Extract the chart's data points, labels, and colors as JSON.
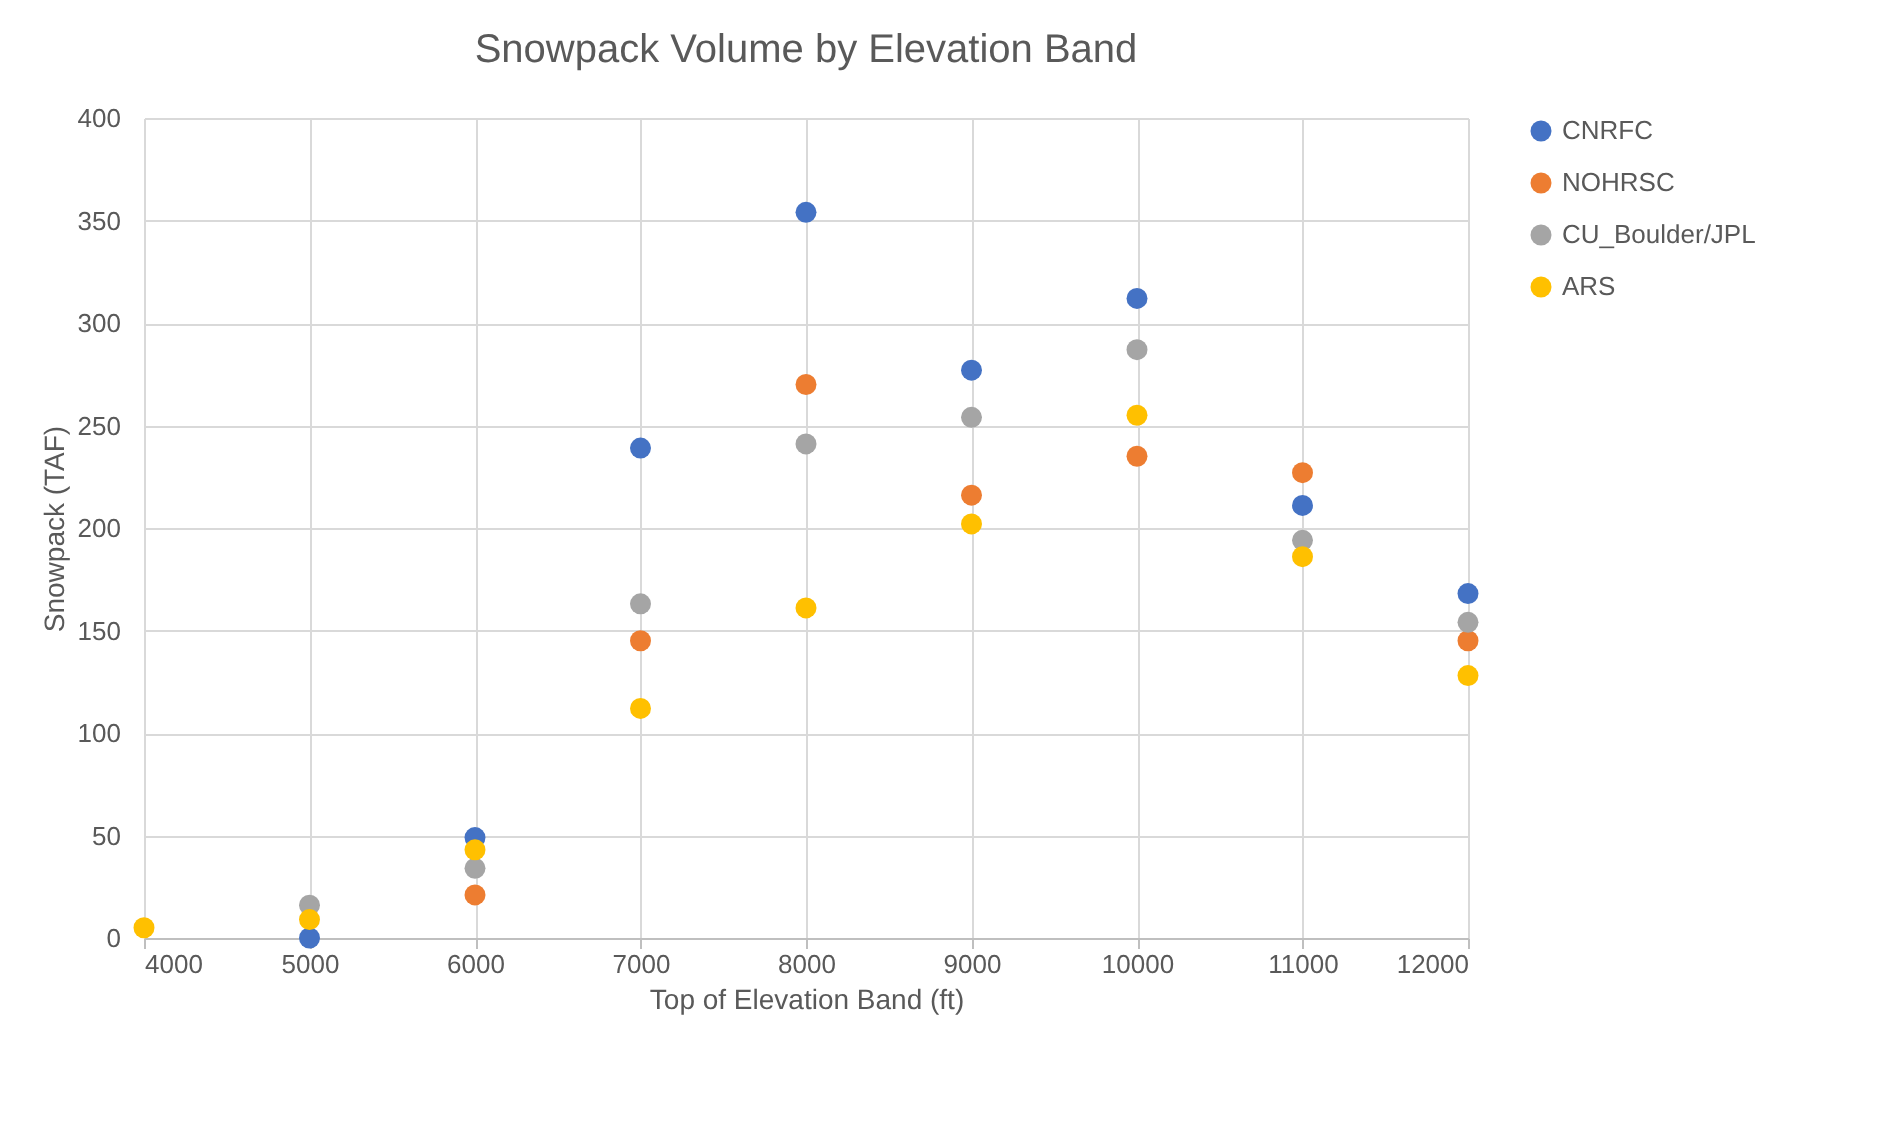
{
  "chart_data": {
    "type": "scatter",
    "title": "Snowpack Volume by Elevation Band",
    "xlabel": "Top of Elevation Band (ft)",
    "ylabel": "Snowpack (TAF)",
    "x": [
      4000,
      5000,
      6000,
      7000,
      8000,
      9000,
      10000,
      11000,
      12000
    ],
    "series": [
      {
        "name": "CNRFC",
        "color": "#4472c4",
        "values": [
          null,
          0,
          49,
          239,
          354,
          277,
          312,
          211,
          168
        ]
      },
      {
        "name": "NOHRSC",
        "color": "#ed7d31",
        "values": [
          null,
          null,
          21,
          145,
          270,
          216,
          235,
          227,
          145
        ]
      },
      {
        "name": "CU_Boulder/JPL",
        "color": "#a5a5a5",
        "values": [
          null,
          16,
          34,
          163,
          241,
          254,
          287,
          194,
          154
        ]
      },
      {
        "name": "ARS",
        "color": "#ffc000",
        "values": [
          5,
          9,
          43,
          112,
          161,
          202,
          255,
          186,
          128
        ]
      }
    ],
    "xlim": [
      4000,
      12000
    ],
    "xticks": [
      4000,
      5000,
      6000,
      7000,
      8000,
      9000,
      10000,
      11000,
      12000
    ],
    "ylim": [
      0,
      400
    ],
    "yticks": [
      0,
      50,
      100,
      150,
      200,
      250,
      300,
      350,
      400
    ],
    "grid": true,
    "legend": "right",
    "marker": "circle"
  }
}
